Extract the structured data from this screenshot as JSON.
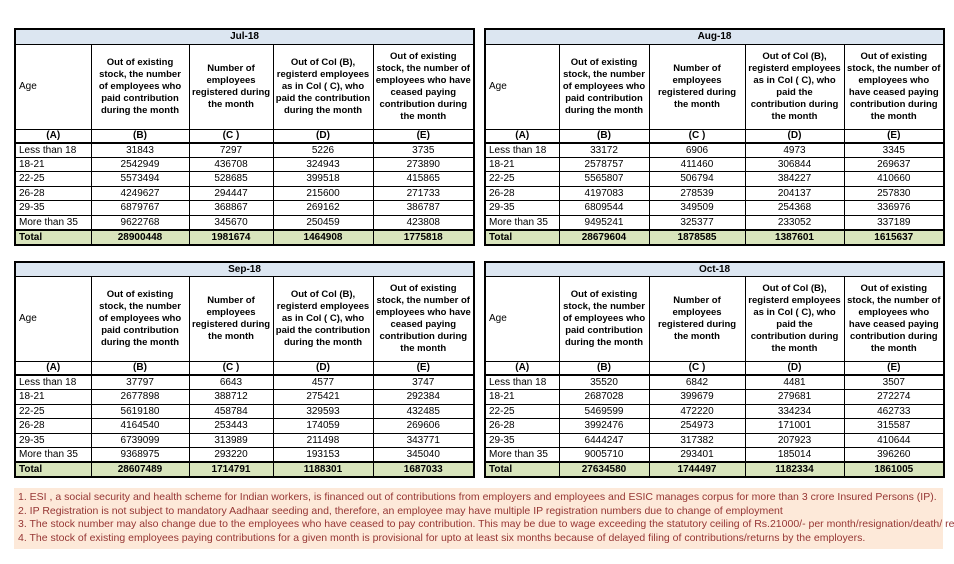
{
  "columns": {
    "age": "Age",
    "b": "Out of existing stock, the number of employees who paid contribution during the month",
    "c": "Number of employees registered during the month",
    "d": "Out of Col (B), registerd employees as in Col ( C), who paid the contribution during the month",
    "e": "Out of existing stock, the number of  employees who have ceased paying contribution during the month"
  },
  "letters": [
    "(A)",
    "(B)",
    "(C )",
    "(D)",
    "(E)"
  ],
  "tables": [
    {
      "title": "Jul-18",
      "rows": [
        [
          "Less than 18",
          "31843",
          "7297",
          "5226",
          "3735"
        ],
        [
          "18-21",
          "2542949",
          "436708",
          "324943",
          "273890"
        ],
        [
          "22-25",
          "5573494",
          "528685",
          "399518",
          "415865"
        ],
        [
          "26-28",
          "4249627",
          "294447",
          "215600",
          "271733"
        ],
        [
          "29-35",
          "6879767",
          "368867",
          "269162",
          "386787"
        ],
        [
          "More than 35",
          "9622768",
          "345670",
          "250459",
          "423808"
        ],
        [
          "Total",
          "28900448",
          "1981674",
          "1464908",
          "1775818"
        ]
      ]
    },
    {
      "title": "Aug-18",
      "rows": [
        [
          "Less than 18",
          "33172",
          "6906",
          "4973",
          "3345"
        ],
        [
          "18-21",
          "2578757",
          "411460",
          "306844",
          "269637"
        ],
        [
          "22-25",
          "5565807",
          "506794",
          "384227",
          "410660"
        ],
        [
          "26-28",
          "4197083",
          "278539",
          "204137",
          "257830"
        ],
        [
          "29-35",
          "6809544",
          "349509",
          "254368",
          "336976"
        ],
        [
          "More than 35",
          "9495241",
          "325377",
          "233052",
          "337189"
        ],
        [
          "Total",
          "28679604",
          "1878585",
          "1387601",
          "1615637"
        ]
      ]
    },
    {
      "title": "Sep-18",
      "rows": [
        [
          "Less than 18",
          "37797",
          "6643",
          "4577",
          "3747"
        ],
        [
          "18-21",
          "2677898",
          "388712",
          "275421",
          "292384"
        ],
        [
          "22-25",
          "5619180",
          "458784",
          "329593",
          "432485"
        ],
        [
          "26-28",
          "4164540",
          "253443",
          "174059",
          "269606"
        ],
        [
          "29-35",
          "6739099",
          "313989",
          "211498",
          "343771"
        ],
        [
          "More than 35",
          "9368975",
          "293220",
          "193153",
          "345040"
        ],
        [
          "Total",
          "28607489",
          "1714791",
          "1188301",
          "1687033"
        ]
      ]
    },
    {
      "title": "Oct-18",
      "rows": [
        [
          "Less than 18",
          "35520",
          "6842",
          "4481",
          "3507"
        ],
        [
          "18-21",
          "2687028",
          "399679",
          "279681",
          "272274"
        ],
        [
          "22-25",
          "5469599",
          "472220",
          "334234",
          "462733"
        ],
        [
          "26-28",
          "3992476",
          "254973",
          "171001",
          "315587"
        ],
        [
          "29-35",
          "6444247",
          "317382",
          "207923",
          "410644"
        ],
        [
          "More than 35",
          "9005710",
          "293401",
          "185014",
          "396260"
        ],
        [
          "Total",
          "27634580",
          "1744497",
          "1182334",
          "1861005"
        ]
      ]
    }
  ],
  "footnotes": [
    "1. ESI , a social security and health scheme for Indian workers, is financed out of contributions from employers and employees and ESIC manages corpus for more than 3 crore Insured Persons (IP).",
    "2. IP Registration is not subject to mandatory Aadhaar seeding and, therefore, an employee may have multiple IP registration numbers due to change of employment",
    "3. The stock number may also change due to the employees who have ceased to pay contribution. This may  be due to wage exceeding the statutory ceiling of  Rs.21000/- per month/resignation/death/ retirement/dismissal.",
    "4. The stock of existing employees paying contributions for a given month is provisional for upto at least six months because of delayed filing of contributions/returns by the employers."
  ],
  "colors": {
    "month_header_bg": "#DCE6F1",
    "total_row_bg": "#D8E4BC",
    "footnote_bg": "#FDE9D9",
    "footnote_text": "#963634"
  }
}
